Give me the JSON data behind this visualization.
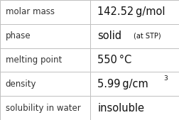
{
  "rows": [
    {
      "label": "molar mass",
      "type": "simple",
      "text": "142.52 g/mol"
    },
    {
      "label": "phase",
      "type": "phase",
      "text1": "solid",
      "text2": "(at STP)"
    },
    {
      "label": "melting point",
      "type": "simple",
      "text": "550 °C"
    },
    {
      "label": "density",
      "type": "super",
      "text": "5.99 g/cm",
      "sup": "3"
    },
    {
      "label": "solubility in water",
      "type": "simple",
      "text": "insoluble"
    }
  ],
  "col_split": 0.505,
  "bg_color": "#ffffff",
  "border_color": "#c0c0c0",
  "label_fontsize": 8.5,
  "value_fontsize": 10.5,
  "small_fontsize": 7.0,
  "super_fontsize": 6.5,
  "label_color": "#333333",
  "value_color": "#111111",
  "lw": 0.7
}
